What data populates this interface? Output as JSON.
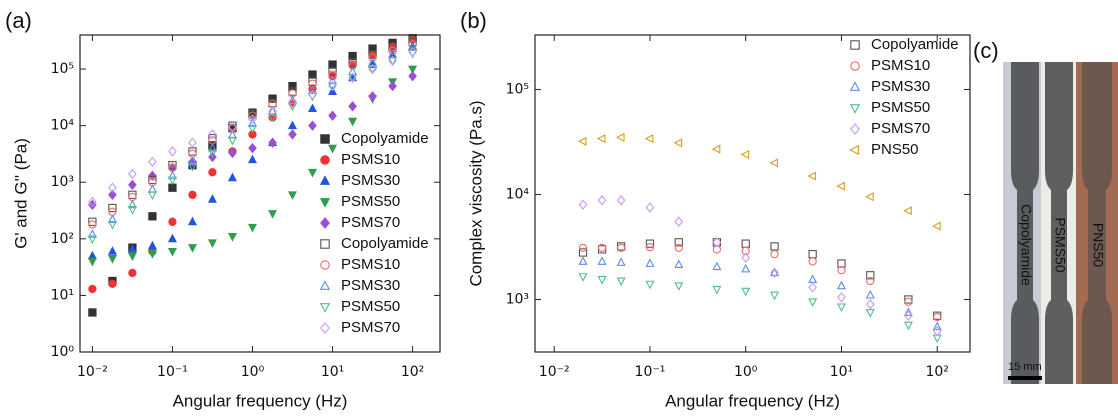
{
  "chart_data": [
    {
      "type": "scatter",
      "panel": "(a)",
      "xlabel": "Angular frequency (Hz)",
      "ylabel": "G' and G'' (Pa)",
      "xscale": "log",
      "yscale": "log",
      "xlim": [
        0.007,
        220
      ],
      "ylim": [
        1,
        400000
      ],
      "legend": "center right",
      "xticks": [
        {
          "value": 0.01,
          "label": "10⁻²"
        },
        {
          "value": 0.1,
          "label": "10⁻¹"
        },
        {
          "value": 1,
          "label": "10⁰"
        },
        {
          "value": 10,
          "label": "10¹"
        },
        {
          "value": 100,
          "label": "10²"
        }
      ],
      "yticks": [
        {
          "value": 1,
          "label": "10⁰"
        },
        {
          "value": 10,
          "label": "10¹"
        },
        {
          "value": 100,
          "label": "10²"
        },
        {
          "value": 1000,
          "label": "10³"
        },
        {
          "value": 10000,
          "label": "10⁴"
        },
        {
          "value": 100000,
          "label": "10⁵"
        }
      ],
      "x": [
        0.01,
        0.0178,
        0.0316,
        0.0562,
        0.1,
        0.178,
        0.316,
        0.562,
        1,
        1.78,
        3.16,
        5.62,
        10,
        17.8,
        31.6,
        56.2,
        100
      ],
      "series": [
        {
          "name": "Copolyamide",
          "color": "#333333",
          "marker": "square",
          "filled": true,
          "values": [
            5,
            18,
            70,
            250,
            800,
            2000,
            4500,
            9000,
            17000,
            30000,
            50000,
            80000,
            120000,
            170000,
            230000,
            290000,
            350000
          ]
        },
        {
          "name": "PSMS10",
          "color": "#ee3333",
          "marker": "circle",
          "filled": true,
          "values": [
            13,
            16,
            25,
            60,
            200,
            600,
            1500,
            3500,
            7000,
            14000,
            25000,
            45000,
            75000,
            120000,
            180000,
            250000,
            330000
          ]
        },
        {
          "name": "PSMS30",
          "color": "#2255dd",
          "marker": "triangle",
          "filled": true,
          "values": [
            50,
            60,
            65,
            75,
            100,
            200,
            500,
            1200,
            2500,
            5000,
            10000,
            20000,
            40000,
            70000,
            120000,
            180000,
            250000
          ]
        },
        {
          "name": "PSMS50",
          "color": "#2e9e4a",
          "marker": "triangle-down",
          "filled": true,
          "values": [
            40,
            45,
            50,
            55,
            60,
            70,
            85,
            110,
            160,
            280,
            600,
            1500,
            4000,
            12000,
            30000,
            60000,
            100000
          ]
        },
        {
          "name": "PSMS70",
          "color": "#9b4fd6",
          "marker": "diamond",
          "filled": true,
          "values": [
            400,
            600,
            900,
            1300,
            1800,
            2300,
            2800,
            3300,
            4000,
            5000,
            7000,
            10000,
            15000,
            22000,
            33000,
            50000,
            75000
          ]
        },
        {
          "name": "Copolyamide",
          "color": "#555555",
          "marker": "square",
          "filled": false,
          "values": [
            200,
            350,
            600,
            1100,
            2000,
            3500,
            6000,
            10000,
            16000,
            25000,
            40000,
            60000,
            90000,
            130000,
            180000,
            240000,
            300000
          ]
        },
        {
          "name": "PSMS10",
          "color": "#f06a6a",
          "marker": "circle",
          "filled": false,
          "values": [
            180,
            300,
            550,
            1000,
            1800,
            3200,
            5500,
            9000,
            15000,
            24000,
            37000,
            55000,
            80000,
            115000,
            160000,
            210000,
            270000
          ]
        },
        {
          "name": "PSMS30",
          "color": "#5a8ee8",
          "marker": "triangle",
          "filled": false,
          "values": [
            120,
            220,
            400,
            750,
            1300,
            2300,
            4000,
            6800,
            11000,
            18000,
            28000,
            42000,
            62000,
            90000,
            130000,
            180000,
            240000
          ]
        },
        {
          "name": "PSMS50",
          "color": "#4fbf8c",
          "marker": "triangle-down",
          "filled": false,
          "values": [
            100,
            180,
            330,
            600,
            1100,
            1900,
            3300,
            5500,
            9000,
            14000,
            22000,
            33000,
            50000,
            72000,
            100000,
            140000,
            190000
          ]
        },
        {
          "name": "PSMS70",
          "color": "#c49af0",
          "marker": "diamond",
          "filled": false,
          "values": [
            450,
            800,
            1400,
            2300,
            3500,
            5000,
            7000,
            9500,
            13000,
            18000,
            25000,
            35000,
            50000,
            70000,
            100000,
            140000,
            200000
          ]
        }
      ]
    },
    {
      "type": "scatter",
      "panel": "(b)",
      "xlabel": "Angular frequency (Hz)",
      "ylabel": "Complex viscosity (Pa.s)",
      "xscale": "log",
      "yscale": "log",
      "xlim": [
        0.0063,
        220
      ],
      "ylim": [
        316,
        330000
      ],
      "legend": "upper right",
      "xticks": [
        {
          "value": 0.01,
          "label": "10⁻²"
        },
        {
          "value": 0.1,
          "label": "10⁻¹"
        },
        {
          "value": 1,
          "label": "10⁰"
        },
        {
          "value": 10,
          "label": "10¹"
        },
        {
          "value": 100,
          "label": "10²"
        }
      ],
      "yticks": [
        {
          "value": 1000,
          "label": "10³"
        },
        {
          "value": 10000,
          "label": "10⁴"
        },
        {
          "value": 100000,
          "label": "10⁵"
        }
      ],
      "x": [
        0.02,
        0.0316,
        0.05,
        0.1,
        0.2,
        0.5,
        1,
        2,
        5,
        10,
        20,
        50,
        100
      ],
      "series": [
        {
          "name": "Copolyamide",
          "color": "#555555",
          "marker": "square",
          "filled": false,
          "values": [
            2800,
            3000,
            3200,
            3400,
            3500,
            3500,
            3400,
            3200,
            2700,
            2200,
            1700,
            1000,
            700
          ]
        },
        {
          "name": "PSMS10",
          "color": "#f06a6a",
          "marker": "circle",
          "filled": false,
          "values": [
            3100,
            3100,
            3100,
            3150,
            3100,
            3000,
            2900,
            2700,
            2300,
            1900,
            1500,
            950,
            680
          ]
        },
        {
          "name": "PSMS30",
          "color": "#5a8ee8",
          "marker": "triangle",
          "filled": false,
          "values": [
            2300,
            2300,
            2250,
            2200,
            2150,
            2050,
            1950,
            1800,
            1550,
            1350,
            1100,
            750,
            550
          ]
        },
        {
          "name": "PSMS50",
          "color": "#4fbf8c",
          "marker": "triangle-down",
          "filled": false,
          "values": [
            1650,
            1550,
            1500,
            1400,
            1350,
            1250,
            1200,
            1100,
            950,
            850,
            750,
            570,
            430
          ]
        },
        {
          "name": "PSMS70",
          "color": "#c49af0",
          "marker": "diamond",
          "filled": false,
          "values": [
            8000,
            8800,
            8800,
            7500,
            5500,
            3500,
            2500,
            1800,
            1300,
            1050,
            900,
            700,
            500
          ]
        },
        {
          "name": "PNS50",
          "color": "#d4a017",
          "marker": "triangle-left",
          "filled": false,
          "values": [
            32000,
            34000,
            35000,
            34000,
            31000,
            27000,
            24000,
            20000,
            15000,
            12000,
            9500,
            7000,
            5000
          ]
        }
      ]
    }
  ],
  "photo": {
    "panel": "(c)",
    "strips": [
      "Copolyamide",
      "PSMS50",
      "PNS50"
    ],
    "scale_bar": "15 mm"
  }
}
